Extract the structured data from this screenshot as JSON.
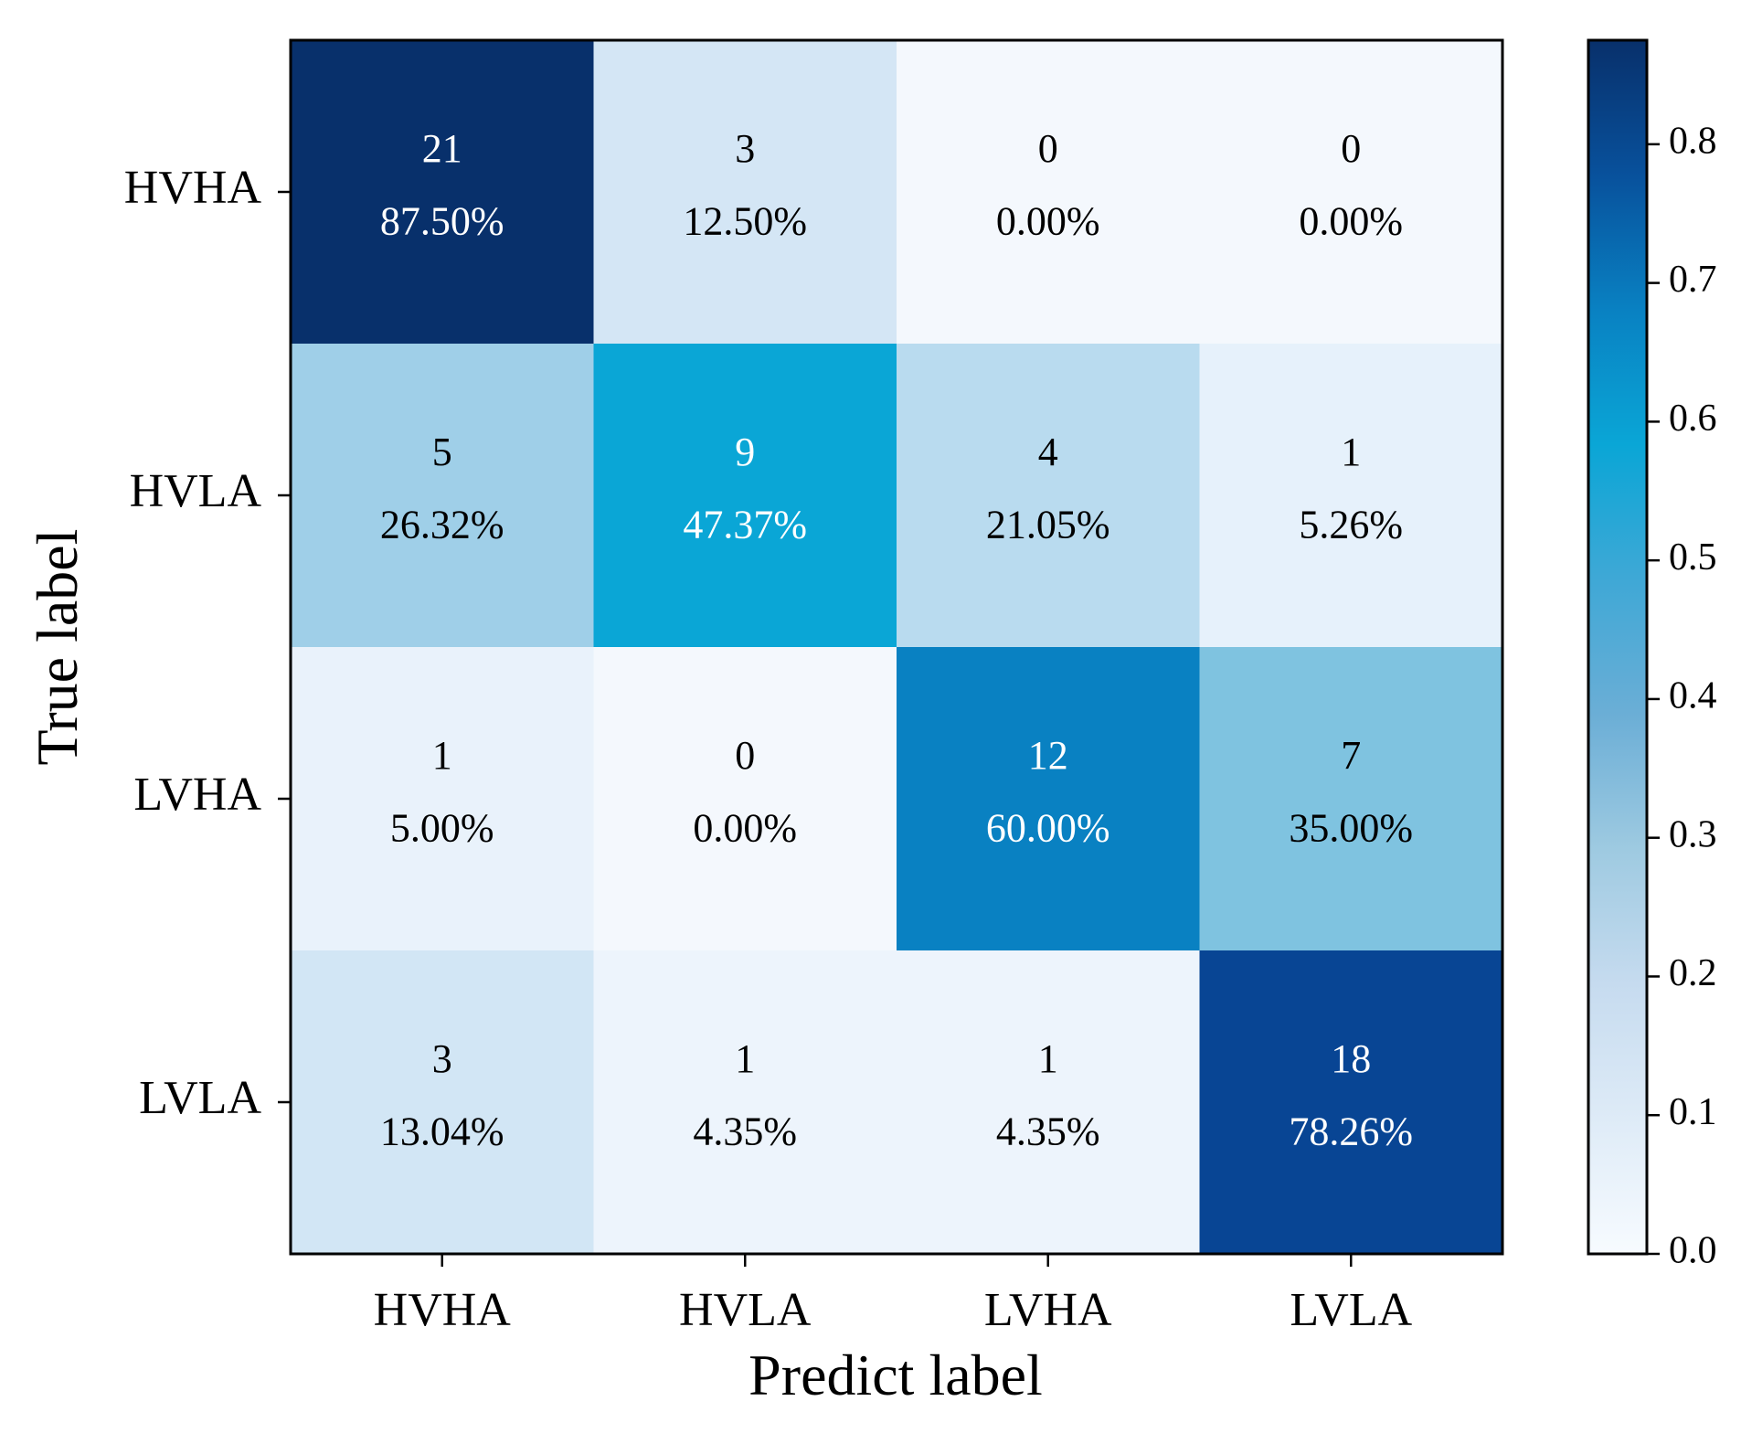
{
  "chart_data": {
    "type": "heatmap",
    "subtype": "confusion-matrix",
    "xlabel": "Predict label",
    "ylabel": "True label",
    "x_categories": [
      "HVHA",
      "HVLA",
      "LVHA",
      "LVLA"
    ],
    "y_categories": [
      "HVHA",
      "HVLA",
      "LVHA",
      "LVLA"
    ],
    "counts": [
      [
        21,
        3,
        0,
        0
      ],
      [
        5,
        9,
        4,
        1
      ],
      [
        1,
        0,
        12,
        7
      ],
      [
        3,
        1,
        1,
        18
      ]
    ],
    "percentages": [
      [
        "87.50%",
        "12.50%",
        "0.00%",
        "0.00%"
      ],
      [
        "26.32%",
        "47.37%",
        "21.05%",
        "5.26%"
      ],
      [
        "5.00%",
        "0.00%",
        "60.00%",
        "35.00%"
      ],
      [
        "13.04%",
        "4.35%",
        "4.35%",
        "78.26%"
      ]
    ],
    "values": [
      [
        0.875,
        0.125,
        0.0,
        0.0
      ],
      [
        0.2632,
        0.4737,
        0.2105,
        0.0526
      ],
      [
        0.05,
        0.0,
        0.6,
        0.35
      ],
      [
        0.1304,
        0.0435,
        0.0435,
        0.7826
      ]
    ],
    "colormap": "YlGnBu-like blues",
    "colorbar": {
      "range": [
        0.0,
        0.875
      ],
      "ticks": [
        0.0,
        0.1,
        0.2,
        0.3,
        0.4,
        0.5,
        0.6,
        0.7,
        0.8
      ],
      "tick_labels": [
        "0.0",
        "0.1",
        "0.2",
        "0.3",
        "0.4",
        "0.5",
        "0.6",
        "0.7",
        "0.8"
      ]
    },
    "cell_colors": [
      [
        "#08306b",
        "#d4e6f5",
        "#f4f8fd",
        "#f4f8fd"
      ],
      [
        "#9fcfe8",
        "#0aa6d6",
        "#b9dbef",
        "#e6f1fb"
      ],
      [
        "#e9f2fb",
        "#f4f8fd",
        "#0981c2",
        "#7fc3e0"
      ],
      [
        "#d2e6f5",
        "#edf4fc",
        "#edf4fc",
        "#084594"
      ]
    ],
    "colorbar_stops": [
      "#f7fbff",
      "#deebf7",
      "#c6dbef",
      "#9ecae1",
      "#6baed6",
      "#3fa8d6",
      "#0aa6d6",
      "#0981c2",
      "#08519c",
      "#08306b"
    ]
  }
}
